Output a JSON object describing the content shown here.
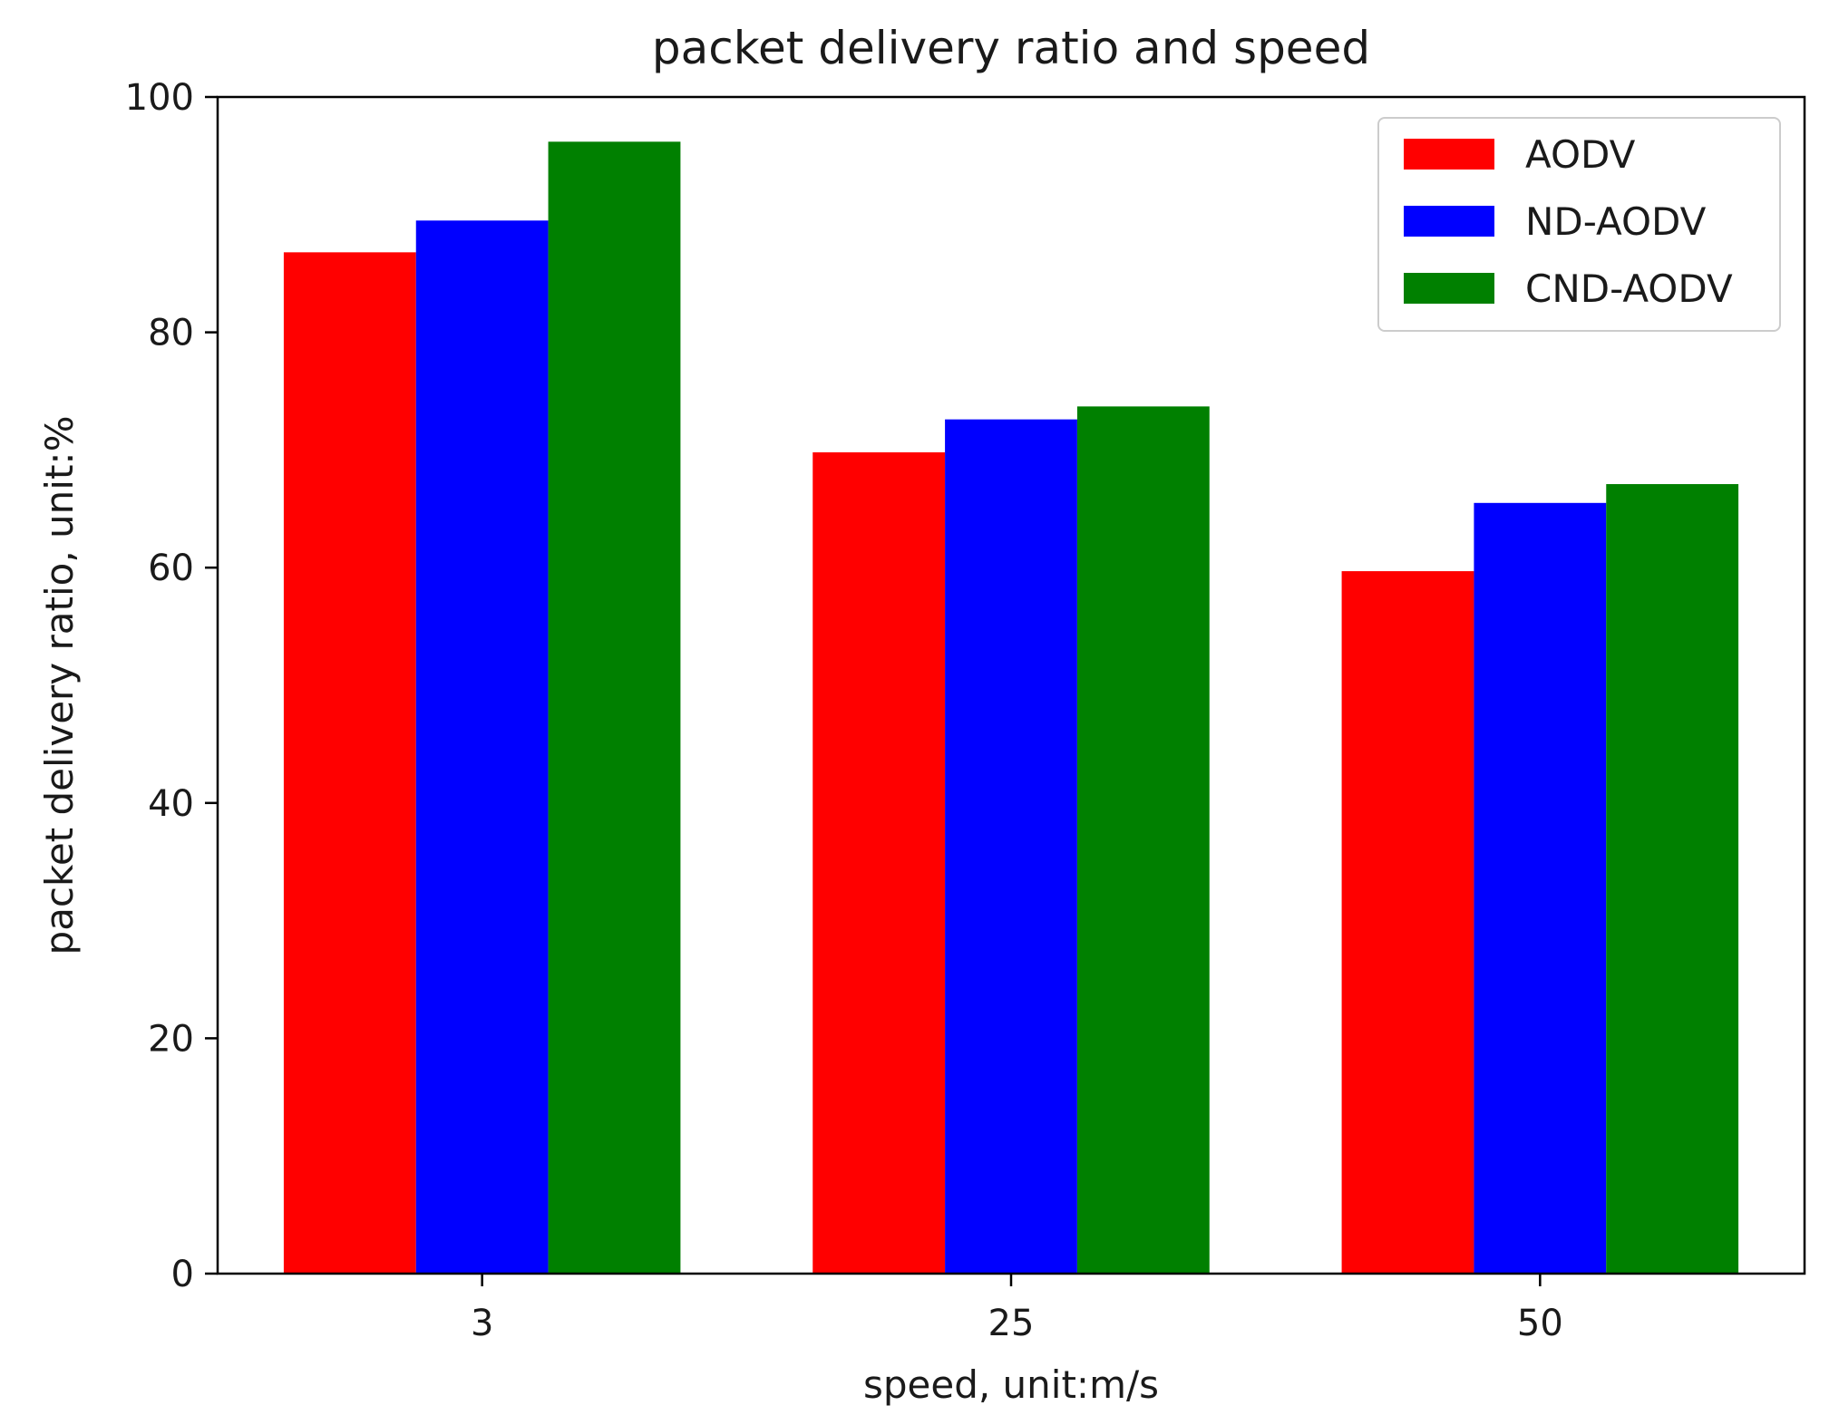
{
  "chart_data": {
    "type": "bar",
    "title": "packet delivery ratio and speed",
    "xlabel": "speed, unit:m/s",
    "ylabel": "packet delivery ratio, unit:%",
    "categories": [
      "3",
      "25",
      "50"
    ],
    "series": [
      {
        "name": "AODV",
        "color": "#ff0000",
        "values": [
          86.8,
          69.8,
          59.7
        ]
      },
      {
        "name": "ND-AODV",
        "color": "#0000ff",
        "values": [
          89.5,
          72.6,
          65.5
        ]
      },
      {
        "name": "CND-AODV",
        "color": "#008000",
        "values": [
          96.2,
          73.7,
          67.1
        ]
      }
    ],
    "ylim": [
      0,
      100
    ],
    "yticks": [
      0,
      20,
      40,
      60,
      80,
      100
    ],
    "grid": false,
    "legend_position": "top-right"
  }
}
